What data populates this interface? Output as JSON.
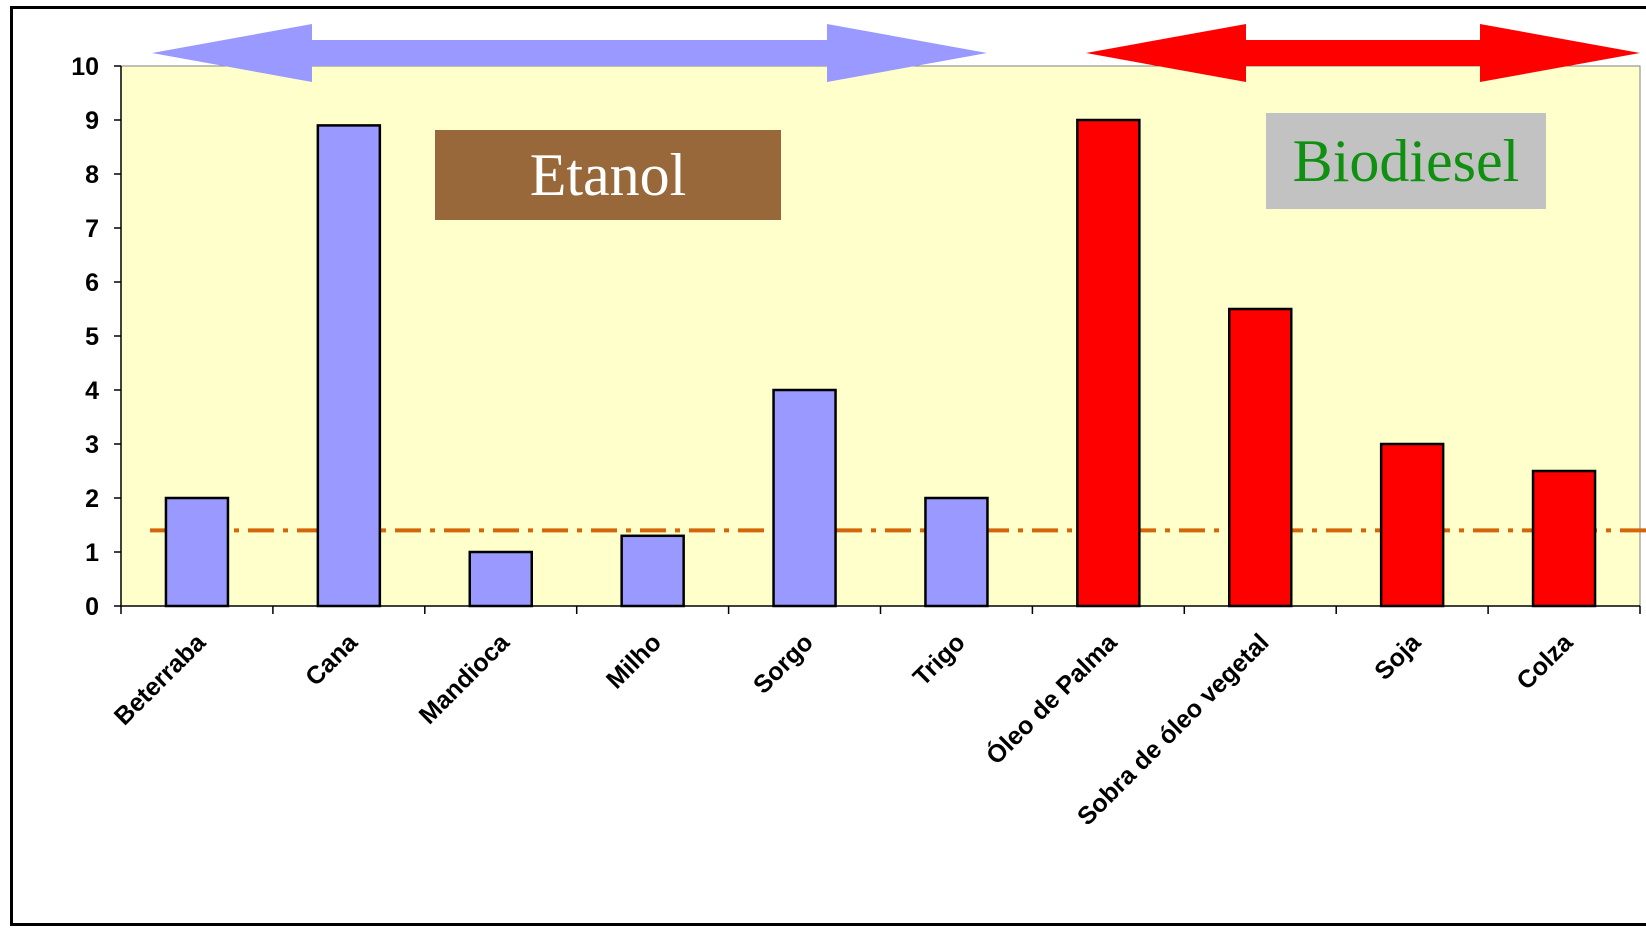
{
  "chart_data": {
    "type": "bar",
    "categories": [
      "Beterraba",
      "Cana",
      "Mandioca",
      "Milho",
      "Sorgo",
      "Trigo",
      "Óleo de Palma",
      "Sobra de óleo vegetal",
      "Soja",
      "Colza"
    ],
    "values": [
      2,
      8.9,
      1,
      1.3,
      4,
      2,
      9,
      5.5,
      3,
      2.5
    ],
    "bar_colors": [
      "#9999ff",
      "#9999ff",
      "#9999ff",
      "#9999ff",
      "#9999ff",
      "#9999ff",
      "#ff0000",
      "#ff0000",
      "#ff0000",
      "#ff0000"
    ],
    "ylim": [
      0,
      10
    ],
    "yticks": [
      "0",
      "1",
      "2",
      "3",
      "4",
      "5",
      "6",
      "7",
      "8",
      "9",
      "10"
    ],
    "reference_line": {
      "value": 1.4,
      "style": "dash-dot",
      "color": "#d4660a"
    },
    "plot_background": "#ffffcc",
    "groups": [
      {
        "label": "Etanol",
        "from": 0,
        "to": 5,
        "arrow_color": "#9999ff",
        "box_color": "#98683a",
        "text_color": "#ffffff"
      },
      {
        "label": "Biodiesel",
        "from": 6,
        "to": 9,
        "arrow_color": "#ff0000",
        "box_color": "#c2c2c2",
        "text_color": "#109010"
      }
    ]
  }
}
